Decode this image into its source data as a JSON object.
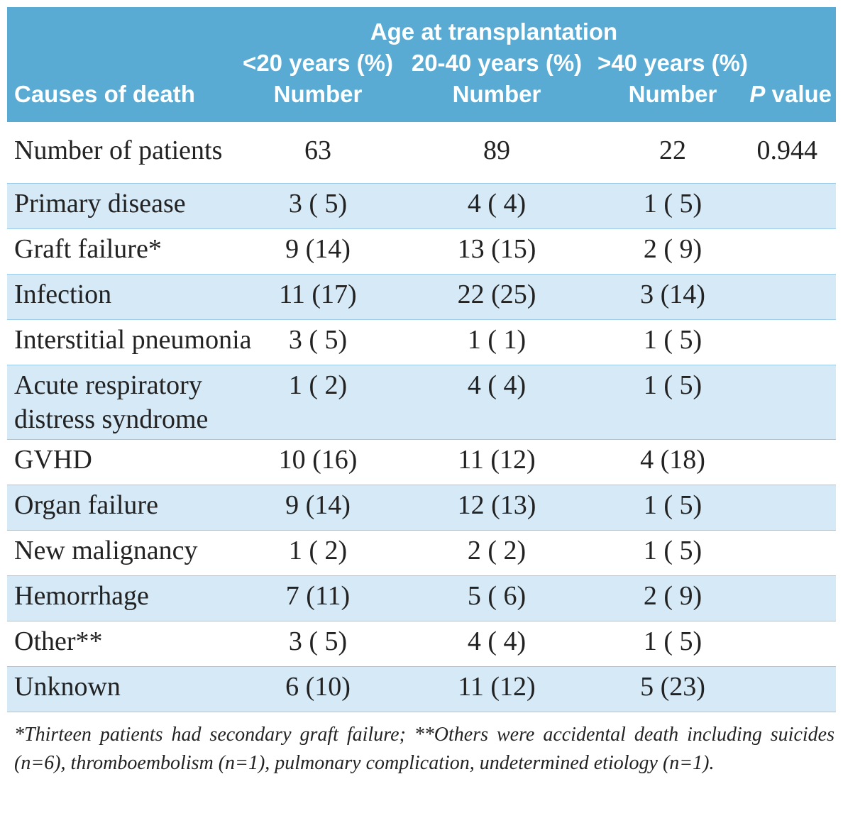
{
  "table": {
    "header": {
      "group": "Age at transplantation",
      "age_groups": [
        "<20 years (%)",
        "20-40 years (%)",
        ">40 years (%)"
      ],
      "columns": [
        "Causes of death",
        "Number",
        "Number",
        "Number"
      ],
      "p_value_column": {
        "italic": "P",
        "text": "value"
      }
    },
    "p_value": "0.944",
    "rows": [
      {
        "cause": "Number of patients",
        "values": [
          "63",
          "89",
          "22"
        ]
      },
      {
        "cause": "Primary disease",
        "values": [
          "3 ( 5)",
          "4 ( 4)",
          "1 ( 5)"
        ]
      },
      {
        "cause": "Graft failure*",
        "values": [
          "9 (14)",
          "13 (15)",
          "2 ( 9)"
        ]
      },
      {
        "cause": "Infection",
        "values": [
          "11 (17)",
          "22 (25)",
          "3 (14)"
        ]
      },
      {
        "cause": "Interstitial pneumonia",
        "values": [
          "3 ( 5)",
          "1 ( 1)",
          "1 ( 5)"
        ]
      },
      {
        "cause": "Acute respiratory distress syndrome",
        "values": [
          "1 ( 2)",
          "4 ( 4)",
          "1 ( 5)"
        ]
      },
      {
        "cause": "GVHD",
        "values": [
          "10 (16)",
          "11 (12)",
          "4 (18)"
        ]
      },
      {
        "cause": "Organ failure",
        "values": [
          "9 (14)",
          "12 (13)",
          "1 ( 5)"
        ]
      },
      {
        "cause": "New malignancy",
        "values": [
          "1 ( 2)",
          "2 ( 2)",
          "1 ( 5)"
        ]
      },
      {
        "cause": "Hemorrhage",
        "values": [
          "7 (11)",
          "5 ( 6)",
          "2 ( 9)"
        ]
      },
      {
        "cause": "Other**",
        "values": [
          "3 ( 5)",
          "4 ( 4)",
          "1 ( 5)"
        ]
      },
      {
        "cause": "Unknown",
        "values": [
          "6 (10)",
          "11 (12)",
          "5 (23)"
        ]
      }
    ]
  },
  "footnote": "*Thirteen patients had secondary graft failure; **Others were accidental death including suicides (n=6), thromboembolism (n=1), pulmonary complication, undetermined etiology (n=1)."
}
